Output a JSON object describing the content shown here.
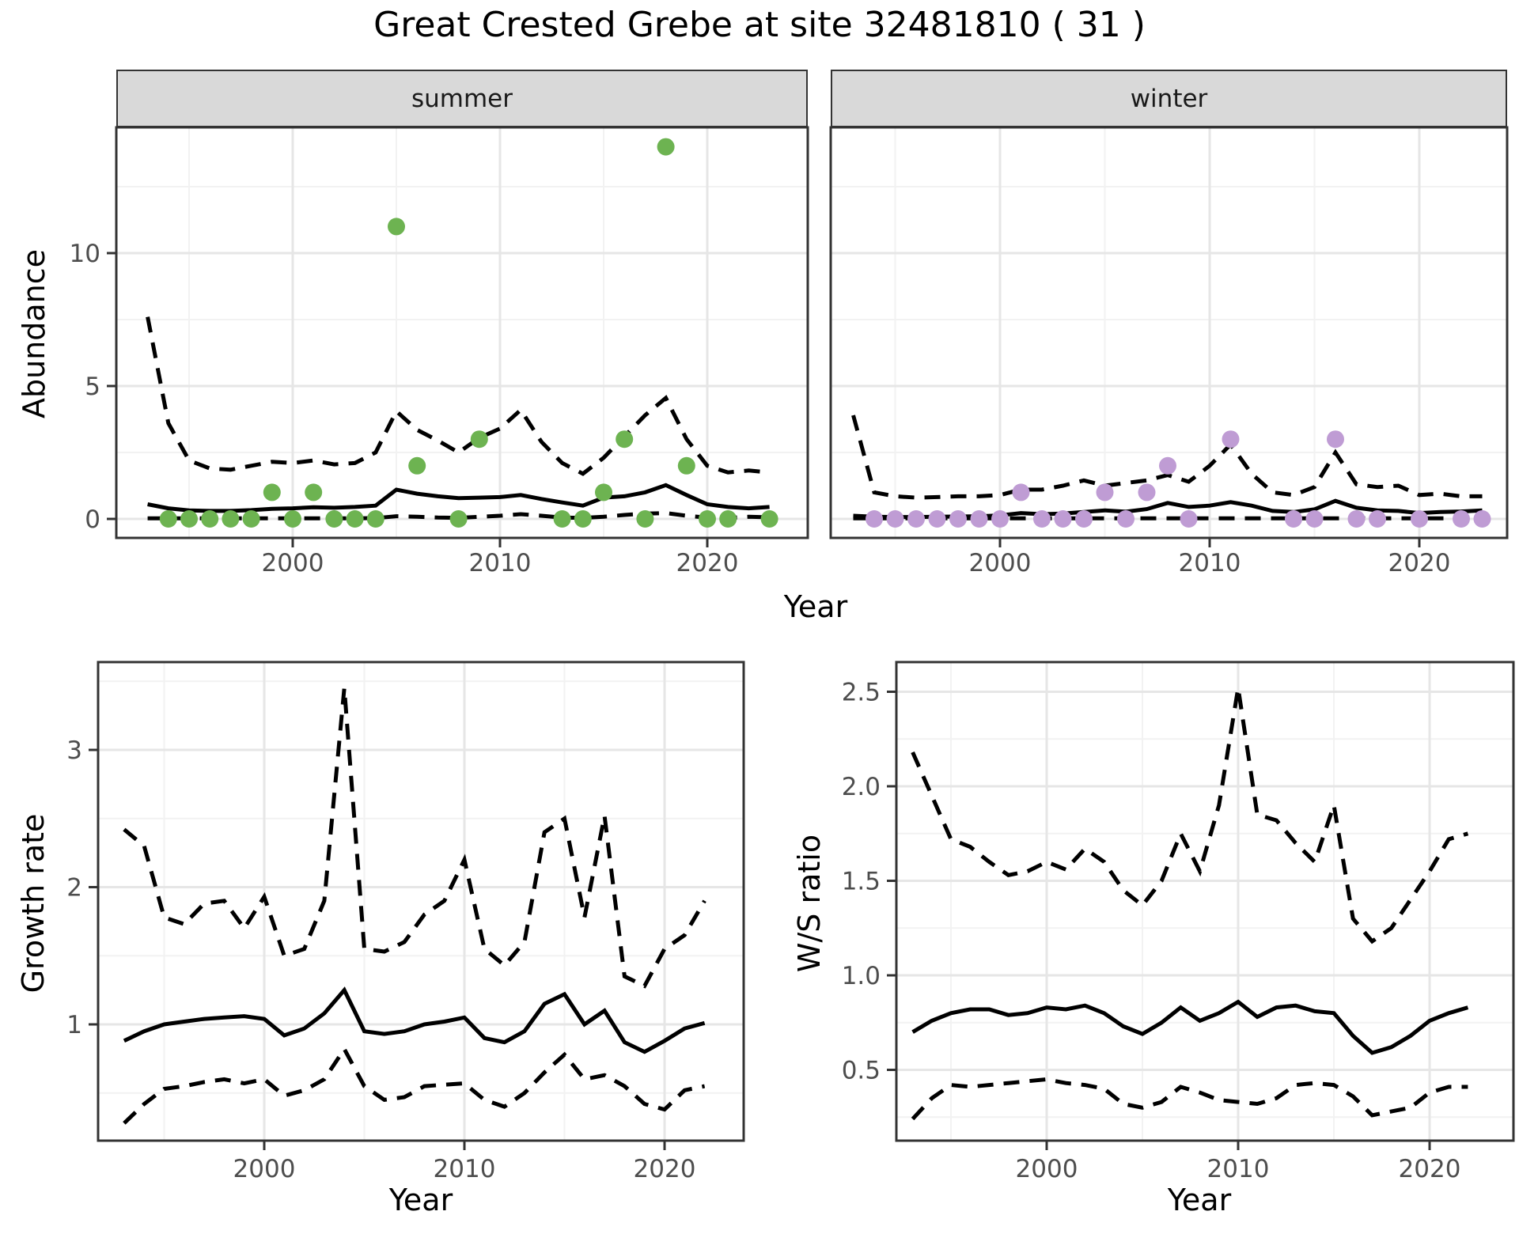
{
  "title": "Great Crested Grebe at site 32481810 ( 31 )",
  "facets": [
    {
      "label": "summer"
    },
    {
      "label": "winter"
    }
  ],
  "axes": {
    "top": {
      "ylabel": "Abundance",
      "xlabel": "Year",
      "yticks": [
        "0",
        "5",
        "10"
      ],
      "xticks": [
        "2000",
        "2010",
        "2020"
      ]
    },
    "growth": {
      "ylabel": "Growth rate",
      "xlabel": "Year",
      "yticks": [
        "1",
        "2",
        "3"
      ],
      "xticks": [
        "2000",
        "2010",
        "2020"
      ]
    },
    "ws": {
      "ylabel": "W/S ratio",
      "xlabel": "Year",
      "yticks": [
        "0.5",
        "1.0",
        "1.5",
        "2.0",
        "2.5"
      ],
      "xticks": [
        "2000",
        "2010",
        "2020"
      ]
    }
  },
  "colors": {
    "summer_point": "#6db351",
    "winter_point": "#bf9cd4",
    "line": "#000000",
    "grid_major": "#e6e6e6",
    "grid_minor": "#f2f2f2",
    "panel_border": "#333333",
    "strip_bg": "#d9d9d9",
    "tick_label": "#4d4d4d"
  },
  "chart_data": [
    {
      "id": "abundance-summer",
      "type": "scatter",
      "facet": "summer",
      "ylabel": "Abundance",
      "xlabel": "Year",
      "ylim": [
        0,
        14.7
      ],
      "xlim": [
        1990.4,
        2024.8
      ],
      "grid": true,
      "legend": "none",
      "points": {
        "years": [
          1994,
          1995,
          1996,
          1997,
          1998,
          1999,
          2000,
          2001,
          2002,
          2003,
          2004,
          2005,
          2006,
          2008,
          2009,
          2013,
          2014,
          2015,
          2016,
          2017,
          2018,
          2019,
          2020,
          2021,
          2023
        ],
        "values": [
          0,
          0,
          0,
          0,
          0,
          1,
          0,
          1,
          0,
          0,
          0,
          11,
          2,
          0,
          3,
          0,
          0,
          1,
          3,
          0,
          14,
          2,
          0,
          0,
          0
        ]
      },
      "series": [
        {
          "name": "median",
          "style": "solid",
          "start_year": 1993,
          "values": [
            0.55,
            0.4,
            0.32,
            0.3,
            0.3,
            0.33,
            0.38,
            0.4,
            0.44,
            0.42,
            0.45,
            0.5,
            1.1,
            0.95,
            0.85,
            0.78,
            0.8,
            0.82,
            0.9,
            0.75,
            0.62,
            0.5,
            0.8,
            0.85,
            1.0,
            1.27,
            0.9,
            0.55,
            0.45,
            0.4,
            0.45
          ]
        },
        {
          "name": "upper_CI",
          "style": "dashed",
          "start_year": 1993,
          "values": [
            7.6,
            3.6,
            2.2,
            1.9,
            1.85,
            2.0,
            2.15,
            2.1,
            2.2,
            2.05,
            2.1,
            2.5,
            4.05,
            3.35,
            2.95,
            2.5,
            3.05,
            3.4,
            4.1,
            2.9,
            2.1,
            1.7,
            2.3,
            3.1,
            3.9,
            4.55,
            3.0,
            2.0,
            1.75,
            1.82,
            1.75
          ]
        },
        {
          "name": "lower_CI",
          "style": "dashed",
          "start_year": 1993,
          "values": [
            0.02,
            0.02,
            0.02,
            0.02,
            0.02,
            0.02,
            0.02,
            0.02,
            0.02,
            0.02,
            0.02,
            0.03,
            0.1,
            0.08,
            0.05,
            0.04,
            0.08,
            0.12,
            0.18,
            0.12,
            0.05,
            0.04,
            0.08,
            0.15,
            0.2,
            0.22,
            0.12,
            0.05,
            0.04,
            0.08,
            0.06
          ]
        }
      ]
    },
    {
      "id": "abundance-winter",
      "type": "scatter",
      "facet": "winter",
      "ylabel": "Abundance",
      "xlabel": "Year",
      "ylim": [
        0,
        14.7
      ],
      "xlim": [
        1991.8,
        2024.2
      ],
      "grid": true,
      "legend": "none",
      "points": {
        "years": [
          1994,
          1995,
          1996,
          1997,
          1998,
          1999,
          2000,
          2001,
          2002,
          2003,
          2004,
          2005,
          2006,
          2007,
          2008,
          2009,
          2011,
          2014,
          2015,
          2016,
          2017,
          2018,
          2020,
          2022,
          2023
        ],
        "values": [
          0,
          0,
          0,
          0,
          0,
          0,
          0,
          1,
          0,
          0,
          0,
          1,
          0,
          1,
          2,
          0,
          3,
          0,
          0,
          3,
          0,
          0,
          0,
          0,
          0
        ]
      },
      "series": [
        {
          "name": "median",
          "style": "solid",
          "start_year": 1993,
          "values": [
            0.12,
            0.08,
            0.07,
            0.07,
            0.08,
            0.09,
            0.1,
            0.13,
            0.22,
            0.18,
            0.2,
            0.26,
            0.32,
            0.27,
            0.37,
            0.6,
            0.45,
            0.5,
            0.63,
            0.5,
            0.3,
            0.26,
            0.36,
            0.68,
            0.42,
            0.32,
            0.3,
            0.22,
            0.26,
            0.28,
            0.32
          ]
        },
        {
          "name": "upper_CI",
          "style": "dashed",
          "start_year": 1993,
          "values": [
            3.9,
            1.0,
            0.85,
            0.8,
            0.82,
            0.85,
            0.85,
            0.9,
            1.1,
            1.1,
            1.25,
            1.45,
            1.25,
            1.35,
            1.45,
            1.65,
            1.4,
            2.0,
            2.8,
            1.7,
            1.0,
            0.9,
            1.2,
            2.5,
            1.3,
            1.2,
            1.25,
            0.9,
            0.95,
            0.85,
            0.85
          ]
        },
        {
          "name": "lower_CI",
          "style": "dashed",
          "start_year": 1993,
          "values": [
            0.02,
            0.02,
            0.02,
            0.02,
            0.02,
            0.02,
            0.02,
            0.02,
            0.02,
            0.02,
            0.02,
            0.02,
            0.02,
            0.02,
            0.02,
            0.02,
            0.02,
            0.02,
            0.02,
            0.02,
            0.02,
            0.02,
            0.02,
            0.02,
            0.02,
            0.02,
            0.02,
            0.02,
            0.02,
            0.02,
            0.02
          ]
        }
      ]
    },
    {
      "id": "growth-rate",
      "type": "line",
      "ylabel": "Growth rate",
      "xlabel": "Year",
      "ylim": [
        0.15,
        3.65
      ],
      "xlim": [
        1991.7,
        2024.0
      ],
      "grid": true,
      "legend": "none",
      "series": [
        {
          "name": "median",
          "style": "solid",
          "start_year": 1993,
          "values": [
            0.88,
            0.95,
            1.0,
            1.02,
            1.04,
            1.05,
            1.06,
            1.04,
            0.92,
            0.97,
            1.08,
            1.25,
            0.95,
            0.93,
            0.95,
            1.0,
            1.02,
            1.05,
            0.9,
            0.87,
            0.95,
            1.15,
            1.22,
            1.0,
            1.1,
            0.87,
            0.8,
            0.88,
            0.97,
            1.01
          ]
        },
        {
          "name": "upper_CI",
          "style": "dashed",
          "start_year": 1993,
          "values": [
            2.42,
            2.3,
            1.78,
            1.73,
            1.88,
            1.9,
            1.7,
            1.93,
            1.5,
            1.55,
            1.9,
            3.45,
            1.55,
            1.53,
            1.6,
            1.8,
            1.9,
            2.2,
            1.55,
            1.43,
            1.6,
            2.4,
            2.5,
            1.78,
            2.52,
            1.35,
            1.28,
            1.55,
            1.65,
            1.9
          ]
        },
        {
          "name": "lower_CI",
          "style": "dashed",
          "start_year": 1993,
          "values": [
            0.28,
            0.42,
            0.53,
            0.55,
            0.58,
            0.6,
            0.57,
            0.6,
            0.48,
            0.52,
            0.6,
            0.82,
            0.55,
            0.45,
            0.47,
            0.55,
            0.56,
            0.57,
            0.45,
            0.4,
            0.5,
            0.65,
            0.78,
            0.6,
            0.63,
            0.55,
            0.42,
            0.38,
            0.52,
            0.55
          ]
        }
      ]
    },
    {
      "id": "ws-ratio",
      "type": "line",
      "ylabel": "W/S ratio",
      "xlabel": "Year",
      "ylim": [
        0.13,
        2.65
      ],
      "xlim": [
        1992.1,
        2024.4
      ],
      "grid": true,
      "legend": "none",
      "series": [
        {
          "name": "median",
          "style": "solid",
          "start_year": 1993,
          "values": [
            0.7,
            0.76,
            0.8,
            0.82,
            0.82,
            0.79,
            0.8,
            0.83,
            0.82,
            0.84,
            0.8,
            0.73,
            0.69,
            0.75,
            0.83,
            0.76,
            0.8,
            0.86,
            0.78,
            0.83,
            0.84,
            0.81,
            0.8,
            0.68,
            0.59,
            0.62,
            0.68,
            0.76,
            0.8,
            0.83
          ]
        },
        {
          "name": "upper_CI",
          "style": "dashed",
          "start_year": 1993,
          "values": [
            2.18,
            1.95,
            1.72,
            1.68,
            1.6,
            1.53,
            1.55,
            1.6,
            1.56,
            1.67,
            1.6,
            1.45,
            1.37,
            1.5,
            1.75,
            1.55,
            1.9,
            2.52,
            1.85,
            1.82,
            1.7,
            1.6,
            1.9,
            1.3,
            1.18,
            1.25,
            1.4,
            1.55,
            1.72,
            1.75
          ]
        },
        {
          "name": "lower_CI",
          "style": "dashed",
          "start_year": 1993,
          "values": [
            0.24,
            0.35,
            0.42,
            0.41,
            0.42,
            0.43,
            0.44,
            0.45,
            0.43,
            0.42,
            0.4,
            0.32,
            0.3,
            0.33,
            0.41,
            0.38,
            0.34,
            0.33,
            0.32,
            0.35,
            0.42,
            0.43,
            0.42,
            0.36,
            0.26,
            0.28,
            0.3,
            0.38,
            0.41,
            0.41
          ]
        }
      ]
    }
  ]
}
